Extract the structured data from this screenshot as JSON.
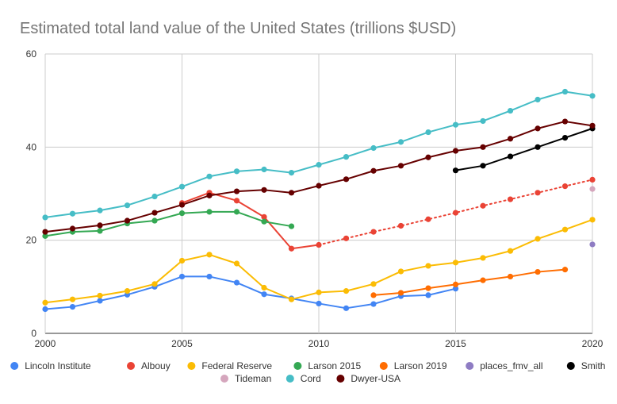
{
  "chart_data": {
    "type": "line",
    "title": "Estimated total land value of the United States (trillions $USD)",
    "xlabel": "",
    "ylabel": "",
    "xlim": [
      2000,
      2020
    ],
    "ylim": [
      0,
      60
    ],
    "x_ticks": [
      2000,
      2005,
      2010,
      2015,
      2020
    ],
    "y_ticks": [
      0,
      20,
      40,
      60
    ],
    "grid": true,
    "legend_position": "bottom",
    "series": [
      {
        "name": "Lincoln Institute",
        "color": "#4285F4",
        "style": "solid",
        "points": [
          [
            2000,
            5.2
          ],
          [
            2001,
            5.7
          ],
          [
            2002,
            7.0
          ],
          [
            2003,
            8.3
          ],
          [
            2004,
            10.0
          ],
          [
            2005,
            12.2
          ],
          [
            2006,
            12.2
          ],
          [
            2007,
            10.9
          ],
          [
            2008,
            8.4
          ],
          [
            2009,
            7.5
          ],
          [
            2010,
            6.4
          ],
          [
            2011,
            5.4
          ],
          [
            2012,
            6.3
          ],
          [
            2013,
            8.0
          ],
          [
            2014,
            8.2
          ],
          [
            2015,
            9.6
          ]
        ]
      },
      {
        "name": "Albouy",
        "color": "#EA4335",
        "style": "solid",
        "points": [
          [
            2005,
            28.0
          ],
          [
            2006,
            30.2
          ],
          [
            2007,
            28.5
          ],
          [
            2008,
            25.0
          ],
          [
            2009,
            18.2
          ],
          [
            2010,
            19.0
          ]
        ]
      },
      {
        "name": "Albouy (projection)",
        "color": "#EA4335",
        "style": "dotted",
        "legend": false,
        "points": [
          [
            2010,
            19.0
          ],
          [
            2011,
            20.4
          ],
          [
            2012,
            21.8
          ],
          [
            2013,
            23.1
          ],
          [
            2014,
            24.5
          ],
          [
            2015,
            25.9
          ],
          [
            2016,
            27.4
          ],
          [
            2017,
            28.8
          ],
          [
            2018,
            30.2
          ],
          [
            2019,
            31.6
          ],
          [
            2020,
            33.0
          ]
        ]
      },
      {
        "name": "Federal Reserve",
        "color": "#FBBC04",
        "style": "solid",
        "points": [
          [
            2000,
            6.6
          ],
          [
            2001,
            7.3
          ],
          [
            2002,
            8.1
          ],
          [
            2003,
            9.1
          ],
          [
            2004,
            10.6
          ],
          [
            2005,
            15.6
          ],
          [
            2006,
            16.9
          ],
          [
            2007,
            15.0
          ],
          [
            2008,
            9.8
          ],
          [
            2009,
            7.3
          ],
          [
            2010,
            8.8
          ],
          [
            2011,
            9.1
          ],
          [
            2012,
            10.6
          ],
          [
            2013,
            13.3
          ],
          [
            2014,
            14.5
          ],
          [
            2015,
            15.2
          ],
          [
            2016,
            16.2
          ],
          [
            2017,
            17.7
          ],
          [
            2018,
            20.3
          ],
          [
            2019,
            22.3
          ],
          [
            2020,
            24.4
          ]
        ]
      },
      {
        "name": "Larson 2015",
        "color": "#34A853",
        "style": "solid",
        "points": [
          [
            2000,
            20.9
          ],
          [
            2001,
            21.8
          ],
          [
            2002,
            22.0
          ],
          [
            2003,
            23.6
          ],
          [
            2004,
            24.2
          ],
          [
            2005,
            25.8
          ],
          [
            2006,
            26.1
          ],
          [
            2007,
            26.1
          ],
          [
            2008,
            24.0
          ],
          [
            2009,
            23.0
          ]
        ]
      },
      {
        "name": "Larson 2019",
        "color": "#FF6D01",
        "style": "solid",
        "points": [
          [
            2012,
            8.2
          ],
          [
            2013,
            8.7
          ],
          [
            2014,
            9.7
          ],
          [
            2015,
            10.5
          ],
          [
            2016,
            11.4
          ],
          [
            2017,
            12.2
          ],
          [
            2018,
            13.2
          ],
          [
            2019,
            13.7
          ]
        ]
      },
      {
        "name": "places_fmv_all",
        "color": "#8E7CC3",
        "style": "solid",
        "points": [
          [
            2020,
            19.1
          ]
        ]
      },
      {
        "name": "Smith",
        "color": "#000000",
        "style": "solid",
        "points": [
          [
            2015,
            35.0
          ],
          [
            2016,
            36.0
          ],
          [
            2017,
            38.0
          ],
          [
            2018,
            40.0
          ],
          [
            2019,
            42.0
          ],
          [
            2020,
            44.0
          ]
        ]
      },
      {
        "name": "Tideman",
        "color": "#D5A6BD",
        "style": "solid",
        "points": [
          [
            2020,
            31.0
          ]
        ]
      },
      {
        "name": "Cord",
        "color": "#46BDC6",
        "style": "solid",
        "points": [
          [
            2000,
            24.9
          ],
          [
            2001,
            25.7
          ],
          [
            2002,
            26.4
          ],
          [
            2003,
            27.5
          ],
          [
            2004,
            29.4
          ],
          [
            2005,
            31.5
          ],
          [
            2006,
            33.7
          ],
          [
            2007,
            34.8
          ],
          [
            2008,
            35.2
          ],
          [
            2009,
            34.5
          ],
          [
            2010,
            36.2
          ],
          [
            2011,
            37.9
          ],
          [
            2012,
            39.8
          ],
          [
            2013,
            41.1
          ],
          [
            2014,
            43.2
          ],
          [
            2015,
            44.8
          ],
          [
            2016,
            45.6
          ],
          [
            2017,
            47.8
          ],
          [
            2018,
            50.2
          ],
          [
            2019,
            51.9
          ],
          [
            2020,
            51.0
          ]
        ]
      },
      {
        "name": "Dwyer-USA",
        "color": "#660000",
        "style": "solid",
        "points": [
          [
            2000,
            21.8
          ],
          [
            2001,
            22.5
          ],
          [
            2002,
            23.2
          ],
          [
            2003,
            24.2
          ],
          [
            2004,
            25.9
          ],
          [
            2005,
            27.6
          ],
          [
            2006,
            29.6
          ],
          [
            2007,
            30.5
          ],
          [
            2008,
            30.8
          ],
          [
            2009,
            30.2
          ],
          [
            2010,
            31.7
          ],
          [
            2011,
            33.1
          ],
          [
            2012,
            34.9
          ],
          [
            2013,
            36.0
          ],
          [
            2014,
            37.8
          ],
          [
            2015,
            39.2
          ],
          [
            2016,
            40.0
          ],
          [
            2017,
            41.8
          ],
          [
            2018,
            44.0
          ],
          [
            2019,
            45.5
          ],
          [
            2020,
            44.6
          ]
        ]
      }
    ]
  }
}
